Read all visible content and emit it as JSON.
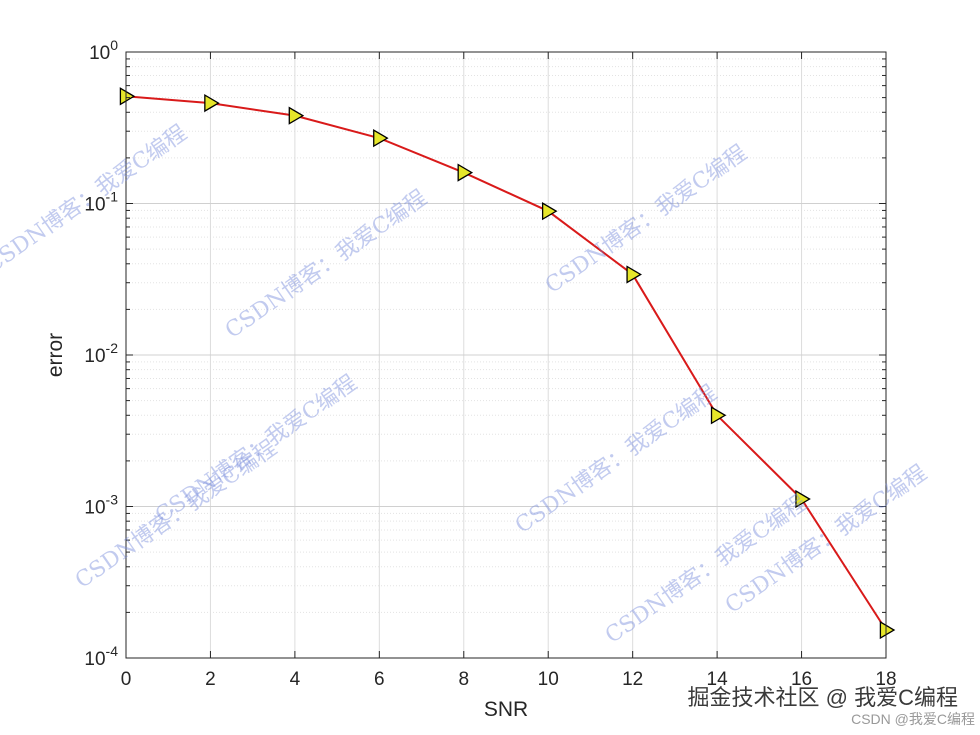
{
  "chart_data": {
    "type": "line",
    "x_label": "SNR",
    "y_label": "error",
    "x": [
      0,
      2,
      4,
      6,
      8,
      10,
      12,
      14,
      16,
      18
    ],
    "series": [
      {
        "values": [
          0.51,
          0.46,
          0.38,
          0.27,
          0.16,
          0.089,
          0.034,
          0.004,
          0.00112,
          0.000153
        ],
        "color": "#d91a1a",
        "marker": "triangle-right",
        "marker_color": "#e6e62a"
      }
    ],
    "xlim": [
      0,
      18
    ],
    "xticks": [
      0,
      2,
      4,
      6,
      8,
      10,
      12,
      14,
      16,
      18
    ],
    "ylim": [
      0.0001,
      1
    ],
    "log_y": true,
    "yticks": [
      {
        "value": 0.0001,
        "label": "10^-4"
      },
      {
        "value": 0.001,
        "label": "10^-3"
      },
      {
        "value": 0.01,
        "label": "10^-2"
      },
      {
        "value": 0.1,
        "label": "10^-1"
      },
      {
        "value": 1,
        "label": "10^0"
      }
    ],
    "grid": true
  },
  "watermark": "CSDN博客：我爱C编程",
  "footer": {
    "site": "掘金技术社区 @ 我爱C编程",
    "source": "CSDN @我爱C编程"
  }
}
